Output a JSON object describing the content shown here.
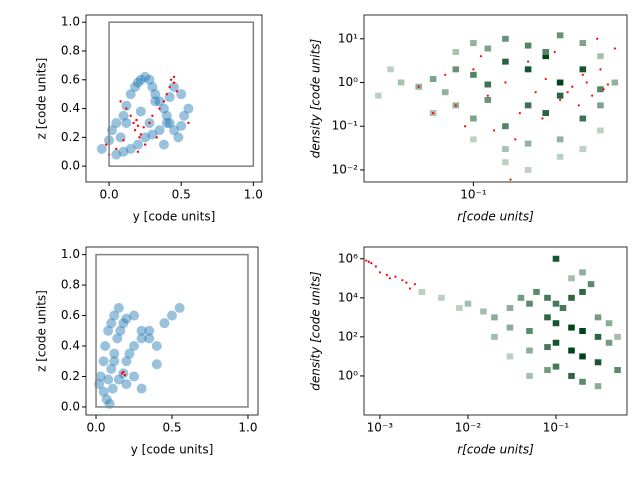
{
  "chart_data": [
    {
      "type": "scatter",
      "xlabel": "y [code units]",
      "ylabel": "z [code units]",
      "xlim": [
        -0.16,
        1.06
      ],
      "ylim": [
        -0.11,
        1.05
      ],
      "xticks": [
        {
          "value": 0,
          "label": "0.0"
        },
        {
          "value": 0.5,
          "label": "0.5"
        },
        {
          "value": 1,
          "label": "1.0"
        }
      ],
      "yticks": [
        {
          "value": 0,
          "label": "0.0"
        },
        {
          "value": 0.2,
          "label": "0.2"
        },
        {
          "value": 0.4,
          "label": "0.4"
        },
        {
          "value": 0.6,
          "label": "0.6"
        },
        {
          "value": 0.8,
          "label": "0.8"
        },
        {
          "value": 1,
          "label": "1.0"
        }
      ],
      "box": {
        "x": [
          0,
          1
        ],
        "y": [
          0,
          1
        ]
      },
      "box_color": "#808080",
      "series": [
        {
          "color": "#1f77b4",
          "x": [
            -0.05,
            0,
            0.02,
            0.05,
            0.08,
            0.1,
            0.12,
            0.15,
            0.18,
            0.2,
            0.22,
            0.25,
            0.28,
            0.3,
            0.32,
            0.35,
            0.38,
            0.4,
            0.42,
            0.45,
            0.48,
            0.5,
            0.52,
            0.55,
            0.05,
            0.1,
            0.15,
            0.2,
            0.25,
            0.3,
            0.35,
            0.4,
            0.45,
            0.5,
            0.12,
            0.22,
            0.32,
            0.42,
            0.28,
            0.38
          ],
          "values": [
            0.12,
            0.18,
            0.25,
            0.3,
            0.2,
            0.35,
            0.42,
            0.5,
            0.55,
            0.58,
            0.6,
            0.62,
            0.6,
            0.55,
            0.5,
            0.45,
            0.4,
            0.35,
            0.3,
            0.25,
            0.2,
            0.28,
            0.35,
            0.4,
            0.08,
            0.1,
            0.12,
            0.15,
            0.2,
            0.22,
            0.25,
            0.3,
            0.55,
            0.5,
            0.3,
            0.38,
            0.45,
            0.48,
            0.3,
            0.15
          ]
        },
        {
          "color": "#ff0000",
          "x": [
            0.18,
            0.2,
            0.22,
            0.17,
            0.21,
            0.19,
            0.24,
            0.15,
            0.12,
            0.1,
            0.05,
            -0.02,
            0.0,
            0.42,
            0.45,
            0.4,
            0.43,
            0.47,
            0.38,
            0.3,
            0.28,
            0.35,
            0.55,
            0.08,
            0.25,
            0.2,
            0.45,
            0.33
          ],
          "values": [
            0.25,
            0.28,
            0.22,
            0.3,
            0.2,
            0.32,
            0.27,
            0.35,
            0.4,
            0.18,
            0.12,
            0.15,
            0.08,
            0.55,
            0.58,
            0.5,
            0.6,
            0.52,
            0.45,
            0.35,
            0.3,
            0.4,
            0.3,
            0.45,
            0.15,
            0.1,
            0.62,
            0.2
          ]
        }
      ]
    },
    {
      "type": "hist2d",
      "xlabel": "r[code units]",
      "ylabel": "density [code units]",
      "log": true,
      "xlim": [
        0.025,
        0.7
      ],
      "ylim": [
        0.0053,
        35
      ],
      "xticks": [
        {
          "value": 0.1,
          "label": "10⁻¹"
        }
      ],
      "yticks": [
        {
          "value": 10,
          "label": "10¹"
        },
        {
          "value": 1,
          "label": "10⁰"
        },
        {
          "value": 0.1,
          "label": "10⁻¹"
        },
        {
          "value": 0.01,
          "label": "10⁻²"
        }
      ],
      "cells": {
        "x": [
          0.04,
          0.05,
          0.06,
          0.07,
          0.08,
          0.1,
          0.12,
          0.15,
          0.2,
          0.25,
          0.3,
          0.4,
          0.5,
          0.6,
          0.06,
          0.08,
          0.1,
          0.12,
          0.15,
          0.2,
          0.25,
          0.3,
          0.4,
          0.5,
          0.08,
          0.1,
          0.12,
          0.15,
          0.2,
          0.25,
          0.3,
          0.4,
          0.5,
          0.1,
          0.15,
          0.2,
          0.3,
          0.4,
          0.5,
          0.15,
          0.2,
          0.3,
          0.4,
          0.03,
          0.035
        ],
        "y": [
          1,
          0.8,
          1.2,
          0.6,
          2,
          1.5,
          0.9,
          3,
          2,
          4,
          1,
          2,
          0.7,
          1,
          0.2,
          0.3,
          0.15,
          0.4,
          0.1,
          0.3,
          0.2,
          0.5,
          0.15,
          0.3,
          5,
          8,
          6,
          10,
          7,
          5,
          12,
          8,
          4,
          0.05,
          0.03,
          0.04,
          0.05,
          0.03,
          0.08,
          0.015,
          0.01,
          0.02,
          0.03,
          0.5,
          2
        ],
        "values": [
          2,
          3,
          4,
          3,
          5,
          6,
          7,
          8,
          9,
          10,
          10,
          9,
          6,
          3,
          2,
          3,
          4,
          5,
          6,
          7,
          8,
          8,
          7,
          4,
          2,
          3,
          4,
          5,
          6,
          6,
          5,
          4,
          2,
          1,
          2,
          3,
          3,
          2,
          1,
          1,
          1,
          1,
          1,
          1,
          1
        ]
      },
      "series": [
        {
          "color": "#ff0000",
          "x": [
            0.05,
            0.07,
            0.08,
            0.1,
            0.12,
            0.15,
            0.18,
            0.2,
            0.22,
            0.25,
            0.3,
            0.35,
            0.4,
            0.45,
            0.5,
            0.55,
            0.6,
            0.09,
            0.13,
            0.17,
            0.28,
            0.38,
            0.42,
            0.48,
            0.33,
            0.11,
            0.24,
            0.06,
            0.16,
            0.52
          ],
          "values": [
            0.8,
            1.5,
            0.3,
            2,
            0.5,
            1,
            0.2,
            3,
            0.6,
            1.2,
            0.4,
            0.8,
            1.5,
            0.5,
            2,
            0.9,
            6,
            0.1,
            0.08,
            0.05,
            5,
            0.3,
            1,
            10,
            0.6,
            4,
            0.15,
            0.2,
            0.006,
            0.7
          ]
        }
      ]
    },
    {
      "type": "scatter",
      "xlabel": "y [code units]",
      "ylabel": "z [code units]",
      "xlim": [
        -0.066,
        1.066
      ],
      "ylim": [
        -0.053,
        1.05
      ],
      "xticks": [
        {
          "value": 0,
          "label": "0.0"
        },
        {
          "value": 0.5,
          "label": "0.5"
        },
        {
          "value": 1,
          "label": "1.0"
        }
      ],
      "yticks": [
        {
          "value": 0,
          "label": "0.0"
        },
        {
          "value": 0.2,
          "label": "0.2"
        },
        {
          "value": 0.4,
          "label": "0.4"
        },
        {
          "value": 0.6,
          "label": "0.6"
        },
        {
          "value": 0.8,
          "label": "0.8"
        },
        {
          "value": 1,
          "label": "1.0"
        }
      ],
      "box": {
        "x": [
          0,
          1
        ],
        "y": [
          0,
          1
        ]
      },
      "box_color": "#808080",
      "series": [
        {
          "color": "#1f77b4",
          "x": [
            0.02,
            0.03,
            0.05,
            0.06,
            0.08,
            0.1,
            0.12,
            0.15,
            0.08,
            0.1,
            0.12,
            0.14,
            0.16,
            0.18,
            0.2,
            0.25,
            0.3,
            0.35,
            0.4,
            0.45,
            0.5,
            0.55,
            0.2,
            0.22,
            0.25,
            0.3,
            0.35,
            0.4,
            0.05,
            0.07,
            0.09,
            0.11,
            0.15,
            0.2,
            0.25,
            0.3,
            0.18,
            0.12
          ],
          "values": [
            0.15,
            0.2,
            0.3,
            0.4,
            0.5,
            0.55,
            0.6,
            0.65,
            0.18,
            0.25,
            0.35,
            0.45,
            0.5,
            0.55,
            0.58,
            0.6,
            0.5,
            0.45,
            0.4,
            0.55,
            0.6,
            0.65,
            0.3,
            0.35,
            0.4,
            0.45,
            0.5,
            0.28,
            0.1,
            0.05,
            0.02,
            0.12,
            0.18,
            0.15,
            0.2,
            0.12,
            0.22,
            0.3
          ]
        },
        {
          "color": "#ff0000",
          "x": [
            0.17,
            0.18,
            0.19
          ],
          "values": [
            0.22,
            0.23,
            0.21
          ]
        }
      ]
    },
    {
      "type": "hist2d",
      "xlabel": "r[code units]",
      "ylabel": "density [code units]",
      "log": true,
      "xlim": [
        0.00066,
        0.64
      ],
      "ylim": [
        0.01,
        4000000
      ],
      "xticks": [
        {
          "value": 0.001,
          "label": "10⁻³"
        },
        {
          "value": 0.01,
          "label": "10⁻²"
        },
        {
          "value": 0.1,
          "label": "10⁻¹"
        }
      ],
      "yticks": [
        {
          "value": 1000000,
          "label": "10⁶"
        },
        {
          "value": 10000,
          "label": "10⁴"
        },
        {
          "value": 100,
          "label": "10²"
        },
        {
          "value": 1,
          "label": "10⁰"
        }
      ],
      "cells": {
        "x": [
          0.003,
          0.005,
          0.008,
          0.01,
          0.015,
          0.02,
          0.03,
          0.04,
          0.05,
          0.06,
          0.08,
          0.1,
          0.12,
          0.15,
          0.2,
          0.25,
          0.3,
          0.4,
          0.5,
          0.02,
          0.03,
          0.05,
          0.08,
          0.1,
          0.15,
          0.2,
          0.3,
          0.4,
          0.03,
          0.05,
          0.08,
          0.1,
          0.15,
          0.2,
          0.3,
          0.5,
          0.05,
          0.08,
          0.1,
          0.15,
          0.2,
          0.3,
          0.1,
          0.2,
          0.15
        ],
        "y": [
          20000,
          10000,
          3000,
          5000,
          2000,
          1000,
          3000,
          10000,
          5000,
          20000,
          10000,
          5000,
          3000,
          10000,
          20000,
          50000,
          1000,
          500,
          100,
          100,
          300,
          200,
          1000,
          500,
          300,
          200,
          100,
          50,
          10,
          20,
          30,
          50,
          20,
          10,
          5,
          2,
          1,
          2,
          3,
          1,
          0.5,
          0.3,
          1000000,
          200000,
          100000
        ],
        "values": [
          1,
          1,
          1,
          2,
          2,
          3,
          3,
          4,
          5,
          5,
          6,
          6,
          6,
          7,
          7,
          5,
          4,
          3,
          2,
          2,
          3,
          5,
          7,
          8,
          9,
          9,
          7,
          4,
          1,
          3,
          6,
          8,
          9,
          9,
          8,
          5,
          2,
          4,
          6,
          7,
          5,
          3,
          8,
          3,
          2
        ]
      },
      "series": [
        {
          "color": "#ff0000",
          "x": [
            0.0007,
            0.0008,
            0.0009,
            0.001,
            0.0012,
            0.0015,
            0.0018,
            0.002,
            0.0022,
            0.0025,
            0.00075,
            0.0013
          ],
          "values": [
            800000,
            600000,
            400000,
            200000,
            150000,
            120000,
            80000,
            60000,
            30000,
            50000,
            700000,
            100000
          ]
        }
      ]
    }
  ]
}
